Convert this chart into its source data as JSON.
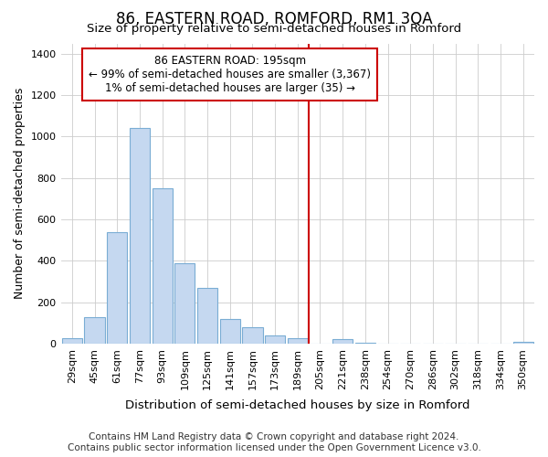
{
  "title": "86, EASTERN ROAD, ROMFORD, RM1 3QA",
  "subtitle": "Size of property relative to semi-detached houses in Romford",
  "xlabel": "Distribution of semi-detached houses by size in Romford",
  "ylabel": "Number of semi-detached properties",
  "footer_line1": "Contains HM Land Registry data © Crown copyright and database right 2024.",
  "footer_line2": "Contains public sector information licensed under the Open Government Licence v3.0.",
  "annotation_title": "86 EASTERN ROAD: 195sqm",
  "annotation_line1": "← 99% of semi-detached houses are smaller (3,367)",
  "annotation_line2": "1% of semi-detached houses are larger (35) →",
  "bar_color": "#c5d8f0",
  "bar_edge_color": "#7aadd4",
  "vline_color": "#cc0000",
  "box_edge_color": "#cc0000",
  "box_face_color": "white",
  "background_color": "#ffffff",
  "grid_color": "#cccccc",
  "categories": [
    "29sqm",
    "45sqm",
    "61sqm",
    "77sqm",
    "93sqm",
    "109sqm",
    "125sqm",
    "141sqm",
    "157sqm",
    "173sqm",
    "189sqm",
    "205sqm",
    "221sqm",
    "238sqm",
    "254sqm",
    "270sqm",
    "286sqm",
    "302sqm",
    "318sqm",
    "334sqm",
    "350sqm"
  ],
  "values": [
    25,
    130,
    540,
    1040,
    750,
    390,
    270,
    120,
    80,
    40,
    25,
    0,
    20,
    5,
    0,
    0,
    0,
    0,
    0,
    0,
    10
  ],
  "vline_position": 10.5,
  "ylim": [
    0,
    1450
  ],
  "yticks": [
    0,
    200,
    400,
    600,
    800,
    1000,
    1200,
    1400
  ],
  "title_fontsize": 12,
  "subtitle_fontsize": 9.5,
  "axis_label_fontsize": 9,
  "tick_fontsize": 8,
  "annotation_title_fontsize": 9,
  "annotation_body_fontsize": 8.5,
  "footer_fontsize": 7.5
}
